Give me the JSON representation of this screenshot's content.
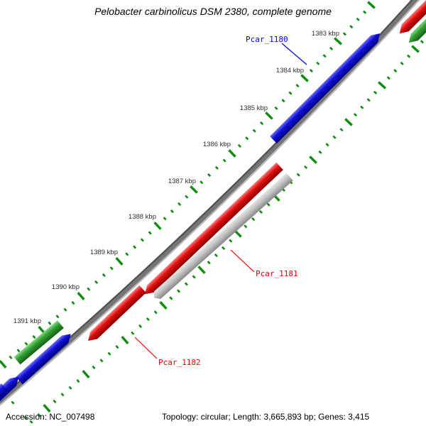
{
  "title": "Pelobacter carbinolicus DSM 2380, complete genome",
  "status_bar": {
    "accession": "Accession: NC_007498",
    "summary": "Topology: circular; Length: 3,665,893 bp; Genes: 3,415"
  },
  "ruler": {
    "unit": "kbp",
    "ticks": [
      {
        "kbp": 1383,
        "label": "1383 kbp"
      },
      {
        "kbp": 1384,
        "label": "1384 kbp"
      },
      {
        "kbp": 1385,
        "label": "1385 kbp"
      },
      {
        "kbp": 1386,
        "label": "1386 kbp"
      },
      {
        "kbp": 1387,
        "label": "1387 kbp"
      },
      {
        "kbp": 1388,
        "label": "1388 kbp"
      },
      {
        "kbp": 1389,
        "label": "1389 kbp"
      },
      {
        "kbp": 1390,
        "label": "1390 kbp"
      },
      {
        "kbp": 1391,
        "label": "1391 kbp"
      }
    ]
  },
  "genes": [
    {
      "id": "Pcar_1180",
      "label": "Pcar_1180",
      "strand": "forward",
      "color": "#1111d6",
      "label_color": "#0000ee"
    },
    {
      "id": "Pcar_1181",
      "label": "Pcar_1181",
      "strand": "reverse",
      "color": "#e01010",
      "label_color": "#ee0000"
    },
    {
      "id": "Pcar_1182",
      "label": "Pcar_1182",
      "strand": "reverse",
      "color": "#e01010",
      "label_color": "#ee0000"
    }
  ],
  "unlabeled_features": [
    {
      "type": "gene",
      "color": "red",
      "strand": "reverse",
      "position": "top-right"
    },
    {
      "type": "gene",
      "color": "green",
      "strand": "reverse",
      "position": "top-right"
    },
    {
      "type": "gene",
      "color": "gray",
      "strand": "reverse",
      "position": "center"
    },
    {
      "type": "gene",
      "color": "blue",
      "strand": "forward",
      "position": "bottom-left"
    },
    {
      "type": "gene",
      "color": "green",
      "strand": "forward",
      "position": "bottom-left"
    },
    {
      "type": "gene",
      "color": "blue",
      "strand": "forward",
      "position": "bottom-left-corner"
    }
  ],
  "colors": {
    "backbone": "#757575",
    "ruler_green": "#0b8c0b",
    "forward_blue": "#1111d6",
    "reverse_red": "#e01010",
    "green_gene": "#33a033",
    "gray_gene": "#c2c2c2",
    "tick_label": "#2e2e2e"
  }
}
